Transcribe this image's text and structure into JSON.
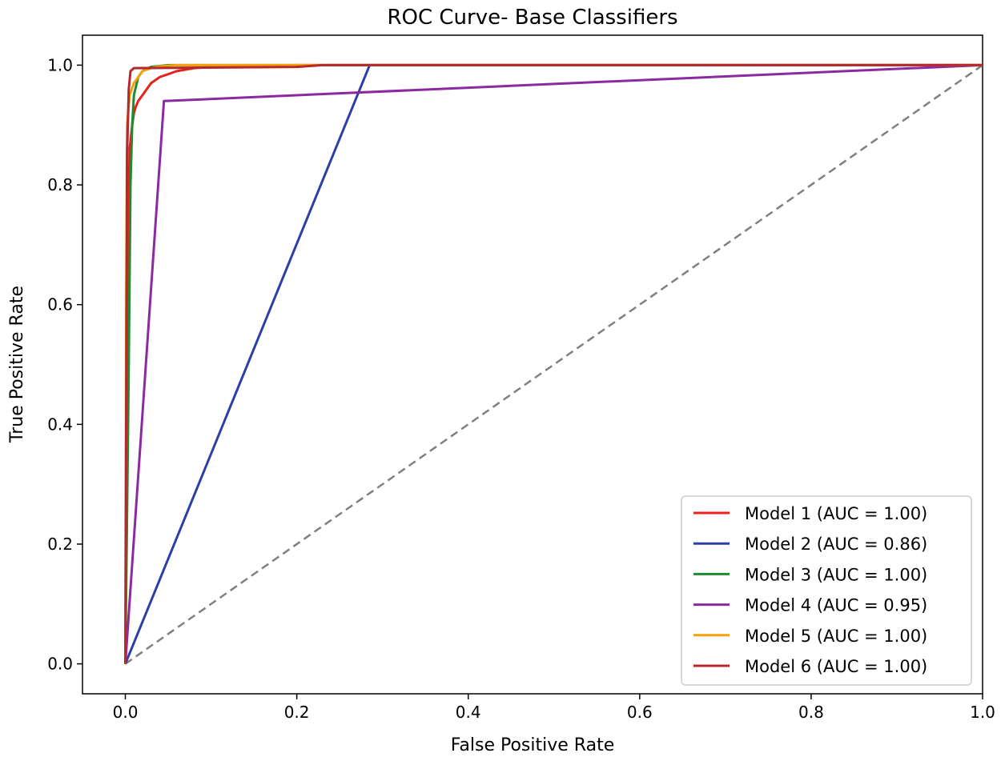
{
  "chart_data": {
    "type": "line",
    "title": "ROC Curve- Base Classifiers",
    "xlabel": "False Positive Rate",
    "ylabel": "True Positive Rate",
    "xlim": [
      -0.05,
      1.0
    ],
    "ylim": [
      -0.05,
      1.05
    ],
    "xticks": [
      "0.0",
      "0.2",
      "0.4",
      "0.6",
      "0.8",
      "1.0"
    ],
    "yticks": [
      "0.0",
      "0.2",
      "0.4",
      "0.6",
      "0.8",
      "1.0"
    ],
    "xtick_values": [
      0.0,
      0.2,
      0.4,
      0.6,
      0.8,
      1.0
    ],
    "ytick_values": [
      0.0,
      0.2,
      0.4,
      0.6,
      0.8,
      1.0
    ],
    "grid": false,
    "legend_position": "lower-right",
    "reference_line": {
      "x": [
        0,
        1
      ],
      "y": [
        0,
        1
      ],
      "color": "#808080",
      "style": "dashed"
    },
    "series": [
      {
        "name": "Model 1 (AUC = 1.00)",
        "color": "#e8211c",
        "x": [
          0,
          0.003,
          0.005,
          0.008,
          0.01,
          0.012,
          0.015,
          0.02,
          0.025,
          0.03,
          0.04,
          0.05,
          0.06,
          0.08,
          0.1,
          0.2,
          0.5,
          1.0
        ],
        "y": [
          0,
          0.7,
          0.86,
          0.9,
          0.92,
          0.93,
          0.94,
          0.95,
          0.96,
          0.97,
          0.98,
          0.985,
          0.99,
          0.995,
          0.997,
          1.0,
          1.0,
          1.0
        ]
      },
      {
        "name": "Model 2 (AUC = 0.86)",
        "color": "#2c3fa6",
        "x": [
          0,
          0.285,
          1.0
        ],
        "y": [
          0,
          1.0,
          1.0
        ]
      },
      {
        "name": "Model 3 (AUC = 1.00)",
        "color": "#1e8a32",
        "x": [
          0,
          0.004,
          0.006,
          0.008,
          0.01,
          0.015,
          0.02,
          0.03,
          0.05,
          0.1,
          1.0
        ],
        "y": [
          0,
          0.5,
          0.8,
          0.9,
          0.95,
          0.98,
          0.99,
          0.997,
          1.0,
          1.0,
          1.0
        ]
      },
      {
        "name": "Model 4 (AUC = 0.95)",
        "color": "#8b2aa0",
        "x": [
          0,
          0.045,
          1.0
        ],
        "y": [
          0,
          0.94,
          1.0
        ]
      },
      {
        "name": "Model 5 (AUC = 1.00)",
        "color": "#f5a20a",
        "x": [
          0,
          0.001,
          0.002,
          0.005,
          0.01,
          0.015,
          0.02,
          0.03,
          0.04,
          0.06,
          0.1,
          1.0
        ],
        "y": [
          0,
          0.6,
          0.9,
          0.95,
          0.97,
          0.98,
          0.99,
          0.995,
          0.998,
          1.0,
          1.0,
          1.0
        ]
      },
      {
        "name": "Model 6 (AUC = 1.00)",
        "color": "#b5282c",
        "x": [
          0,
          0.002,
          0.004,
          0.006,
          0.01,
          0.2,
          0.23,
          1.0
        ],
        "y": [
          0,
          0.85,
          0.96,
          0.99,
          0.995,
          0.997,
          1.0,
          1.0
        ]
      }
    ]
  }
}
